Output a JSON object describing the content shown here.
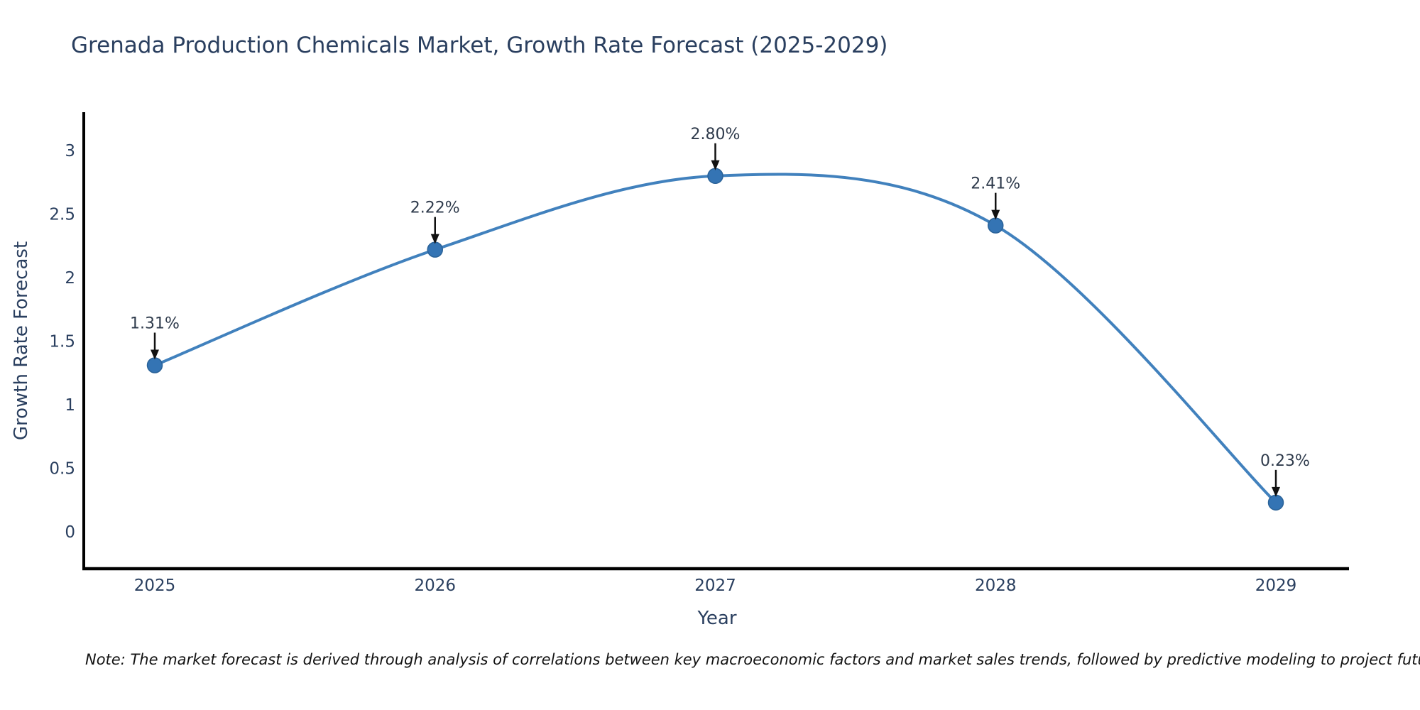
{
  "chart_data": {
    "type": "line",
    "title": "Grenada Production Chemicals Market, Growth Rate Forecast (2025-2029)",
    "xlabel": "Year",
    "ylabel": "Growth Rate Forecast",
    "x": [
      2025,
      2026,
      2027,
      2028,
      2029
    ],
    "series": [
      {
        "name": "Growth Rate Forecast",
        "values": [
          1.31,
          2.22,
          2.8,
          2.41,
          0.23
        ]
      }
    ],
    "point_labels": [
      "1.31%",
      "2.22%",
      "2.80%",
      "2.41%",
      "0.23%"
    ],
    "xtick_labels": [
      "2025",
      "2026",
      "2027",
      "2028",
      "2029"
    ],
    "yticks": [
      0,
      0.5,
      1,
      1.5,
      2,
      2.5,
      3
    ],
    "ytick_labels": [
      "0",
      "0.5",
      "1",
      "1.5",
      "2",
      "2.5",
      "3"
    ],
    "ylim": [
      -0.28,
      3.3
    ],
    "xlim": [
      2024.75,
      2029.28
    ],
    "line_shape": "spline",
    "grid": false,
    "legend_position": "none",
    "colors": {
      "line": "#4181bd",
      "marker": "#3474b4",
      "marker_edge": "#2a6298",
      "axis": "#000000",
      "title_text": "#2a3f5f",
      "tick_text": "#2a3f5f",
      "annotation_text": "#2f3b4c",
      "arrow": "#111111",
      "background": "#ffffff"
    }
  },
  "note": {
    "text": "Note: The market forecast is derived through analysis of correlations between key macroeconomic factors and market sales trends, followed by predictive modeling to project future sales"
  }
}
